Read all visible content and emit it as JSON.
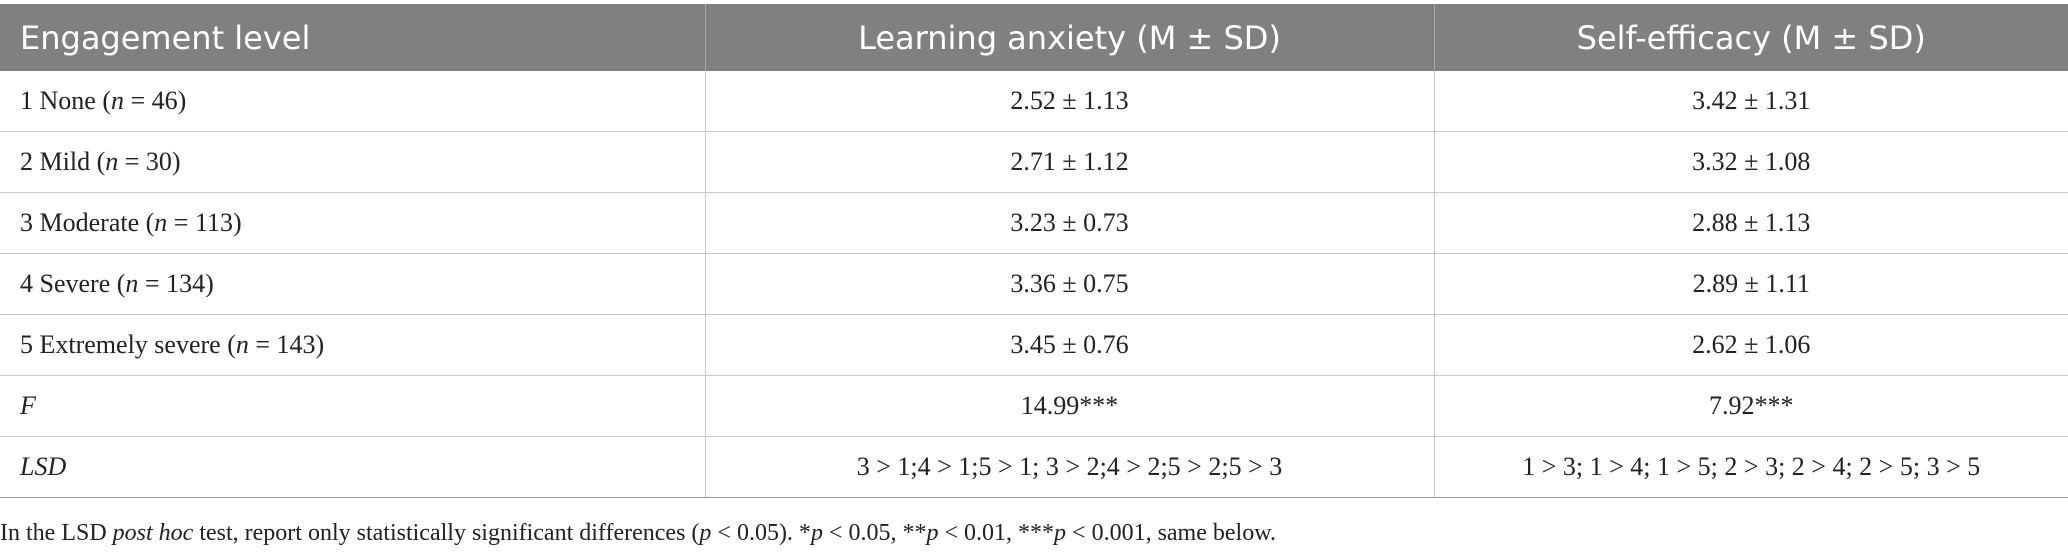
{
  "table": {
    "headers": {
      "col1": "Engagement level",
      "col2": "Learning anxiety (M ± SD)",
      "col3": "Self-efficacy (M ± SD)"
    },
    "rows": [
      {
        "label": "1 None",
        "n_prefix": " (",
        "n_symbol": "n",
        "n_value": " = 46)",
        "anxiety": "2.52 ± 1.13",
        "efficacy": "3.42 ± 1.31"
      },
      {
        "label": "2 Mild",
        "n_prefix": " (",
        "n_symbol": "n",
        "n_value": " = 30)",
        "anxiety": "2.71 ± 1.12",
        "efficacy": "3.32 ± 1.08"
      },
      {
        "label": "3 Moderate",
        "n_prefix": " (",
        "n_symbol": "n",
        "n_value": " = 113)",
        "anxiety": "3.23 ± 0.73",
        "efficacy": "2.88 ± 1.13"
      },
      {
        "label": "4 Severe",
        "n_prefix": " (",
        "n_symbol": "n",
        "n_value": " = 134)",
        "anxiety": "3.36 ± 0.75",
        "efficacy": "2.89 ± 1.11"
      },
      {
        "label": "5 Extremely severe",
        "n_prefix": " (",
        "n_symbol": "n",
        "n_value": " = 143)",
        "anxiety": "3.45 ± 0.76",
        "efficacy": "2.62 ± 1.06"
      }
    ],
    "f_row": {
      "label": "F",
      "anxiety": "14.99***",
      "efficacy": "7.92***"
    },
    "lsd_row": {
      "label": "LSD",
      "anxiety": "3 > 1;4 > 1;5 > 1; 3 > 2;4 > 2;5 > 2;5 > 3",
      "efficacy": "1 > 3; 1 > 4; 1 > 5; 2 > 3; 2 > 4; 2 > 5; 3 > 5"
    }
  },
  "footnote": {
    "part1": "In the LSD ",
    "part2_italic": "post hoc",
    "part3": " test, report only statistically significant differences (",
    "p1": "p",
    "part4": " < 0.05). *",
    "p2": "p",
    "part5": " < 0.05, **",
    "p3": "p",
    "part6": " < 0.01, ***",
    "p4": "p",
    "part7": " < 0.001, same below."
  }
}
